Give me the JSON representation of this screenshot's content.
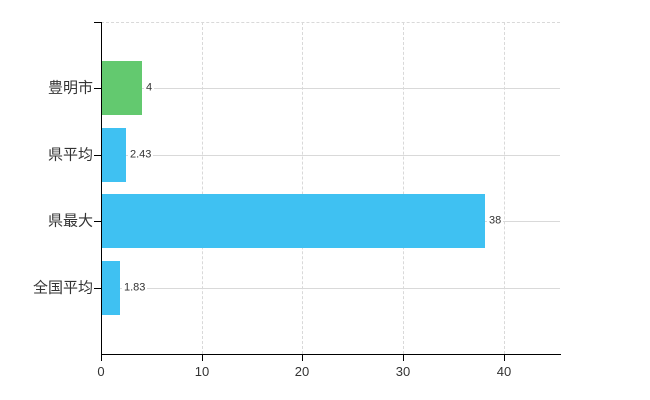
{
  "chart_data": {
    "type": "bar",
    "orientation": "horizontal",
    "title": "",
    "xlabel": "",
    "ylabel": "",
    "categories": [
      "豊明市",
      "県平均",
      "県最大",
      "全国平均"
    ],
    "values": [
      4,
      2.43,
      38,
      1.83
    ],
    "value_labels": [
      "4",
      "2.43",
      "38",
      "1.83"
    ],
    "bar_colors": [
      "#63C96F",
      "#3FC1F2",
      "#3FC1F2",
      "#3FC1F2"
    ],
    "x_ticks": [
      0,
      10,
      20,
      30,
      40
    ],
    "xlim": [
      0,
      45.6
    ],
    "grid": true,
    "legend": "none",
    "colors": {
      "axis": "#000000",
      "grid": "#D9D9D9",
      "text": "#333333",
      "background": "#FFFFFF"
    }
  }
}
